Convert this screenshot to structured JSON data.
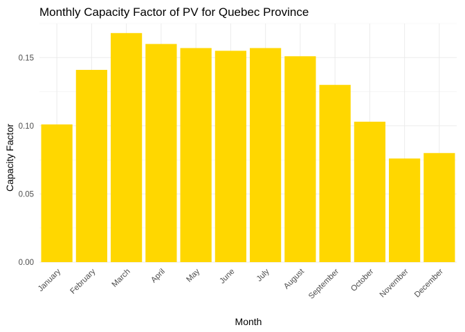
{
  "chart_data": {
    "type": "bar",
    "title": "Monthly Capacity Factor of PV for Quebec Province",
    "xlabel": "Month",
    "ylabel": "Capacity Factor",
    "categories": [
      "January",
      "February",
      "March",
      "April",
      "May",
      "June",
      "July",
      "August",
      "September",
      "October",
      "November",
      "December"
    ],
    "values": [
      0.101,
      0.141,
      0.168,
      0.16,
      0.157,
      0.155,
      0.157,
      0.151,
      0.13,
      0.103,
      0.076,
      0.08
    ],
    "ylim": [
      0,
      0.175
    ],
    "yticks": [
      0.0,
      0.05,
      0.1,
      0.15
    ],
    "ytick_labels": [
      "0.00",
      "0.05",
      "0.10",
      "0.15"
    ],
    "grid": true,
    "legend": "none",
    "bar_color": "#FFD700"
  }
}
